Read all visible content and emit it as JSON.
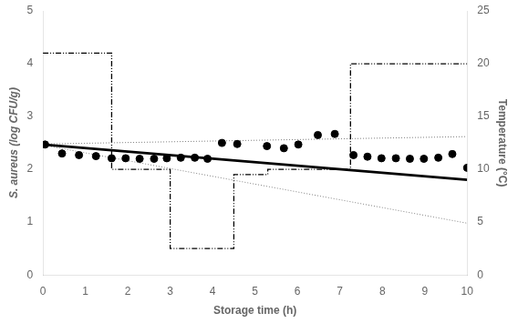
{
  "chart_data": {
    "type": "line",
    "xlabel": "Storage time (h)",
    "ylabel": "S. aureus (log CFU/g)",
    "y2label": "Temperature (°C)",
    "xlim": [
      0,
      10
    ],
    "xticks": [
      0,
      1,
      2,
      3,
      4,
      5,
      6,
      7,
      8,
      9,
      10
    ],
    "ylim": [
      0,
      5
    ],
    "yticks": [
      0,
      1,
      2,
      3,
      4,
      5
    ],
    "y2lim": [
      0,
      25
    ],
    "y2ticks": [
      0,
      5,
      10,
      15,
      20,
      25
    ],
    "grid": false,
    "series": [
      {
        "axis": "y2",
        "type": "line",
        "color": "black",
        "line_style": "dashdot",
        "x": [
          0.0,
          1.62,
          1.62,
          3.0,
          3.0,
          4.5,
          4.5,
          5.3,
          5.3,
          7.25,
          7.25,
          10.0
        ],
        "values": [
          21.0,
          21.0,
          10.0,
          10.0,
          2.5,
          2.5,
          9.5,
          9.5,
          10.0,
          10.0,
          20.0,
          20.0
        ]
      },
      {
        "type": "line",
        "color": "gray",
        "line_style": "dotted",
        "x": [
          0,
          10
        ],
        "values": [
          2.46,
          0.98
        ]
      },
      {
        "type": "line",
        "color": "gray",
        "line_style": "dotted",
        "x": [
          0,
          10
        ],
        "values": [
          2.48,
          2.62
        ]
      },
      {
        "type": "line",
        "color": "black",
        "line_style": "solid",
        "x": [
          0,
          10
        ],
        "values": [
          2.47,
          1.8
        ]
      },
      {
        "type": "scatter",
        "color": "black",
        "marker": "circle",
        "x": [
          0.05,
          0.45,
          0.85,
          1.25,
          1.62,
          1.95,
          2.28,
          2.62,
          2.92,
          3.25,
          3.58,
          3.88,
          4.22,
          4.58,
          5.28,
          5.68,
          6.02,
          6.48,
          6.88,
          7.32,
          7.65,
          7.98,
          8.32,
          8.65,
          8.98,
          9.32,
          9.65,
          10.0
        ],
        "values": [
          2.47,
          2.3,
          2.27,
          2.25,
          2.21,
          2.21,
          2.2,
          2.2,
          2.21,
          2.22,
          2.22,
          2.2,
          2.5,
          2.48,
          2.44,
          2.4,
          2.47,
          2.65,
          2.67,
          2.27,
          2.24,
          2.21,
          2.21,
          2.2,
          2.2,
          2.22,
          2.29,
          2.03
        ]
      }
    ]
  }
}
